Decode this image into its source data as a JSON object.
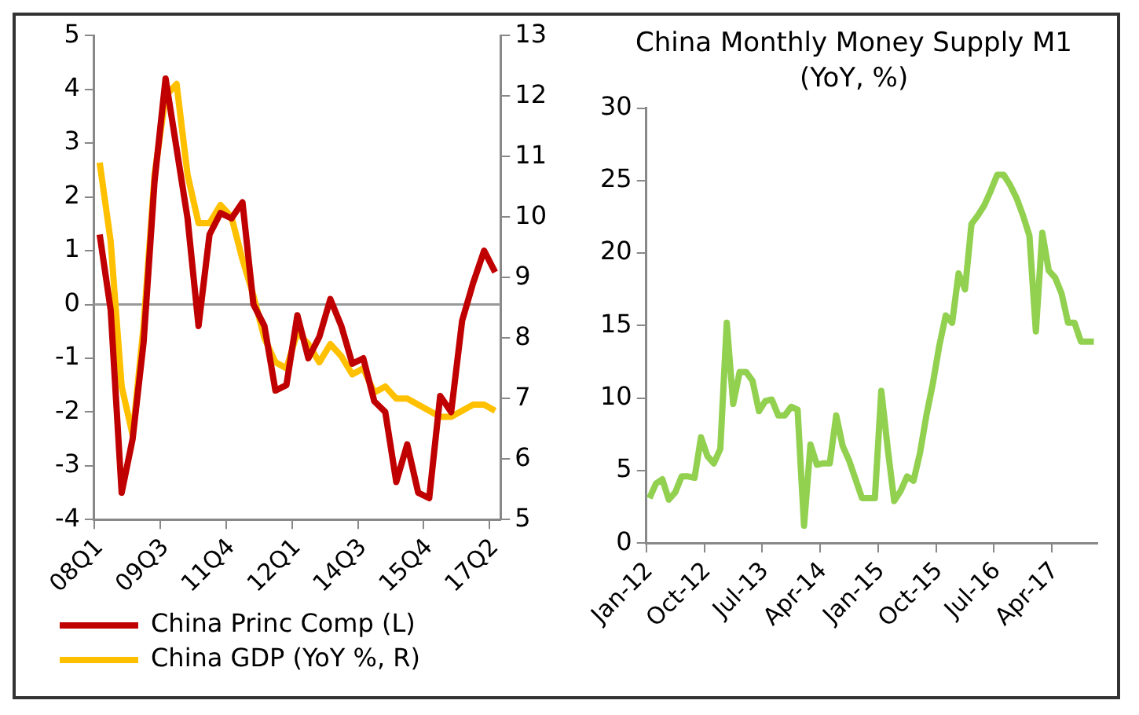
{
  "chart_data": [
    {
      "type": "line",
      "categories": [
        "08Q1",
        null,
        null,
        null,
        null,
        null,
        "09Q3",
        null,
        null,
        null,
        null,
        null,
        "11Q4",
        null,
        null,
        null,
        null,
        null,
        "12Q1",
        null,
        null,
        null,
        null,
        null,
        "14Q3",
        null,
        null,
        null,
        null,
        null,
        "15Q4",
        null,
        null,
        null,
        null,
        null,
        "17Q2"
      ],
      "series": [
        {
          "name": "China Princ Comp (L)",
          "color": "#c00000",
          "values": [
            1.3,
            -0.1,
            -3.5,
            -2.5,
            -0.7,
            2.3,
            4.2,
            2.9,
            1.6,
            -0.4,
            1.3,
            1.7,
            1.6,
            1.9,
            0.0,
            -0.4,
            -1.6,
            -1.5,
            -0.2,
            -1.0,
            -0.6,
            0.1,
            -0.4,
            -1.1,
            -1.0,
            -1.8,
            -2.0,
            -3.3,
            -2.6,
            -3.5,
            -3.6,
            -1.7,
            -2.0,
            -0.3,
            0.4,
            1.0,
            0.6
          ]
        },
        {
          "name": "China GDP (YoY %, R)",
          "color": "#ffc000",
          "axis": "y2",
          "values": [
            10.9,
            9.6,
            7.2,
            6.4,
            8.2,
            10.7,
            12.0,
            12.2,
            10.7,
            9.9,
            9.9,
            10.2,
            10.0,
            9.3,
            8.7,
            8.0,
            7.6,
            7.5,
            8.1,
            7.9,
            7.6,
            7.9,
            7.7,
            7.4,
            7.5,
            7.1,
            7.2,
            7.0,
            7.0,
            6.9,
            6.8,
            6.7,
            6.7,
            6.8,
            6.9,
            6.9,
            6.8
          ]
        }
      ],
      "ylim": [
        -4,
        5
      ],
      "yticks": [
        -4,
        -3,
        -2,
        -1,
        0,
        1,
        2,
        3,
        4,
        5
      ],
      "y2lim": [
        5,
        13
      ],
      "y2ticks": [
        5,
        6,
        7,
        8,
        9,
        10,
        11,
        12,
        13
      ],
      "ref_lines": [
        {
          "axis": "y",
          "value": 0,
          "color": "#999999"
        }
      ],
      "legend": "bottom",
      "grid": false
    },
    {
      "type": "line",
      "title": "China Monthly Money Supply M1",
      "subtitle": "(YoY, %)",
      "categories": [
        "Jan-12",
        null,
        null,
        null,
        null,
        null,
        null,
        null,
        null,
        "Oct-12",
        null,
        null,
        null,
        null,
        null,
        null,
        null,
        null,
        "Jul-13",
        null,
        null,
        null,
        null,
        null,
        null,
        null,
        null,
        "Apr-14",
        null,
        null,
        null,
        null,
        null,
        null,
        null,
        null,
        "Jan-15",
        null,
        null,
        null,
        null,
        null,
        null,
        null,
        null,
        "Oct-15",
        null,
        null,
        null,
        null,
        null,
        null,
        null,
        null,
        "Jul-16",
        null,
        null,
        null,
        null,
        null,
        null,
        null,
        null,
        "Apr-17",
        null,
        null,
        null,
        null,
        null,
        null
      ],
      "series": [
        {
          "color": "#92d050",
          "values": [
            3.1,
            4.1,
            4.4,
            3.0,
            3.5,
            4.6,
            4.6,
            4.5,
            7.3,
            6.0,
            5.5,
            6.5,
            15.2,
            9.6,
            11.8,
            11.8,
            11.2,
            9.1,
            9.8,
            9.9,
            8.8,
            8.8,
            9.4,
            9.2,
            1.2,
            6.8,
            5.4,
            5.5,
            5.5,
            8.8,
            6.7,
            5.7,
            4.4,
            3.1,
            3.1,
            3.1,
            10.5,
            6.5,
            2.9,
            3.6,
            4.6,
            4.3,
            6.2,
            8.8,
            11.0,
            13.6,
            15.7,
            15.2,
            18.6,
            17.5,
            22.0,
            22.6,
            23.3,
            24.3,
            25.4,
            25.4,
            24.7,
            23.8,
            22.6,
            21.2,
            14.6,
            21.4,
            18.8,
            18.3,
            17.2,
            15.2,
            15.2,
            13.9,
            13.9,
            13.9
          ]
        }
      ],
      "ylim": [
        0,
        30
      ],
      "yticks": [
        0,
        5,
        10,
        15,
        20,
        25,
        30
      ],
      "legend": false,
      "grid": false
    }
  ]
}
